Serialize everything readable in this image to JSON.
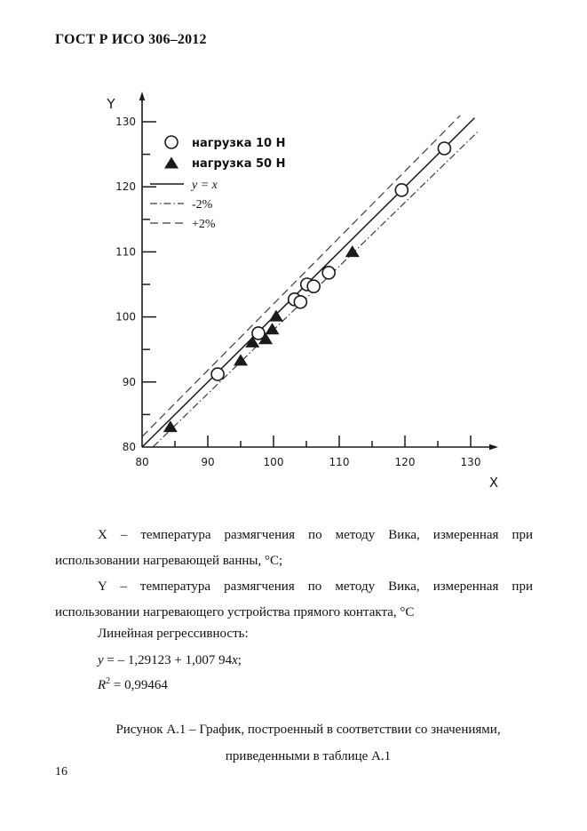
{
  "header": {
    "title": "ГОСТ Р ИСО 306–2012"
  },
  "chart_data": {
    "type": "scatter",
    "title": "",
    "xlabel": "X",
    "ylabel": "Y",
    "xlim": [
      80,
      133
    ],
    "ylim": [
      80,
      134
    ],
    "grid": false,
    "legend_position": "upper-left",
    "x_major_ticks": [
      80,
      90,
      100,
      110,
      120,
      130
    ],
    "x_minor_ticks": [
      85,
      95,
      105,
      115,
      125
    ],
    "y_major_ticks": [
      80,
      90,
      100,
      110,
      120,
      130
    ],
    "y_minor_ticks": [
      85,
      95,
      105,
      115,
      125
    ],
    "series": [
      {
        "name": "нагрузка 10 Н",
        "marker": "circle",
        "points": [
          [
            91.5,
            91.2
          ],
          [
            97.7,
            97.5
          ],
          [
            103.2,
            102.7
          ],
          [
            104.1,
            102.3
          ],
          [
            105.1,
            105.0
          ],
          [
            106.1,
            104.7
          ],
          [
            108.4,
            106.8
          ],
          [
            119.5,
            119.5
          ],
          [
            126.0,
            125.9
          ]
        ]
      },
      {
        "name": "нагрузка 50 Н",
        "marker": "triangle",
        "points": [
          [
            84.3,
            83.2
          ],
          [
            95.0,
            93.4
          ],
          [
            96.8,
            96.2
          ],
          [
            98.8,
            96.7
          ],
          [
            99.8,
            98.2
          ],
          [
            100.4,
            100.2
          ],
          [
            112.0,
            110.1
          ]
        ]
      }
    ],
    "lines": [
      {
        "name": "y = x",
        "style": "solid",
        "slope": 1.0,
        "x_range": [
          80,
          130.6
        ]
      },
      {
        "name": "-2%",
        "style": "dashdot",
        "slope": 0.98,
        "x_range": [
          81.7,
          131.3
        ]
      },
      {
        "name": "+2%",
        "style": "dashed",
        "slope": 1.02,
        "x_range": [
          80,
          128.4
        ]
      }
    ]
  },
  "description": {
    "x_def_line1": "X – температура размягчения по методу Вика, измеренная при",
    "x_def_line2": "использовании нагревающей ванны, °С;",
    "y_def_line1": "Y – температура размягчения по методу Вика, измеренная при",
    "y_def_line2": "использовании нагревающего устройства прямого контакта, °С",
    "regression_label": "Линейная регрессивность:",
    "eq_y": "y",
    "eq_mid": " = – 1,29123 + 1,007 94",
    "eq_x": "x",
    "eq_end": ";",
    "r2_base": "R",
    "r2_sup": "2",
    "r2_rest": " = 0,99464"
  },
  "caption": {
    "line1": "Рисунок А.1 – График, построенный в соответствии со значениями,",
    "line2": "приведенными в таблице А.1"
  },
  "page_number": "16"
}
